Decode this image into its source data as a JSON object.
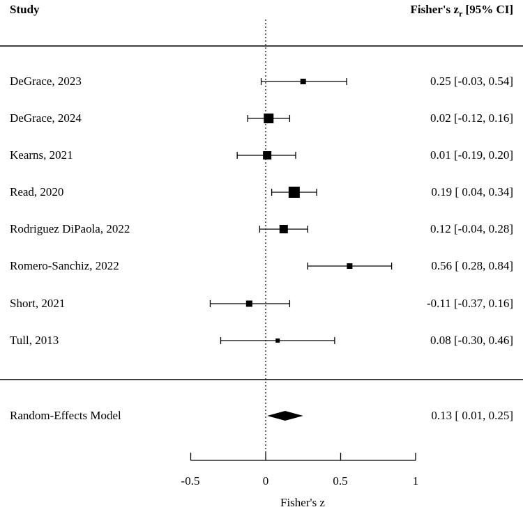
{
  "chart_data": {
    "type": "forest",
    "header": {
      "study_label": "Study",
      "effect_label_main": "Fisher's z",
      "effect_label_sub": "r",
      "effect_label_tail": " [95% CI]"
    },
    "xlabel": "Fisher's z",
    "xlim": [
      -0.5,
      1
    ],
    "xticks": [
      "-0.5",
      "0",
      "0.5",
      "1"
    ],
    "reference_line": 0,
    "studies": [
      {
        "name": "DeGrace, 2023",
        "est": 0.25,
        "lo": -0.03,
        "hi": 0.54,
        "ci_text": "0.25 [-0.03, 0.54]"
      },
      {
        "name": "DeGrace, 2024",
        "est": 0.02,
        "lo": -0.12,
        "hi": 0.16,
        "ci_text": "0.02 [-0.12, 0.16]"
      },
      {
        "name": "Kearns, 2021",
        "est": 0.01,
        "lo": -0.19,
        "hi": 0.2,
        "ci_text": "0.01 [-0.19, 0.20]"
      },
      {
        "name": "Read, 2020",
        "est": 0.19,
        "lo": 0.04,
        "hi": 0.34,
        "ci_text": "0.19 [ 0.04, 0.34]"
      },
      {
        "name": "Rodriguez DiPaola, 2022",
        "est": 0.12,
        "lo": -0.04,
        "hi": 0.28,
        "ci_text": "0.12 [-0.04, 0.28]"
      },
      {
        "name": "Romero-Sanchiz, 2022",
        "est": 0.56,
        "lo": 0.28,
        "hi": 0.84,
        "ci_text": "0.56 [ 0.28, 0.84]"
      },
      {
        "name": "Short, 2021",
        "est": -0.11,
        "lo": -0.37,
        "hi": 0.16,
        "ci_text": "-0.11 [-0.37, 0.16]"
      },
      {
        "name": "Tull, 2013",
        "est": 0.08,
        "lo": -0.3,
        "hi": 0.46,
        "ci_text": "0.08 [-0.30, 0.46]"
      }
    ],
    "summary": {
      "name": "Random-Effects Model",
      "est": 0.13,
      "lo": 0.01,
      "hi": 0.25,
      "ci_text": "0.13 [ 0.01, 0.25]"
    }
  }
}
